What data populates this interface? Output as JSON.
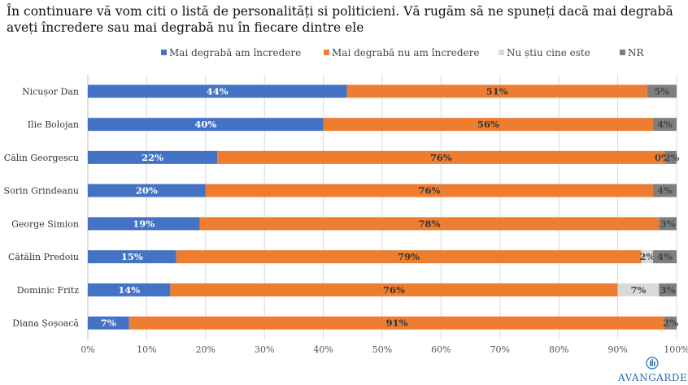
{
  "title": "În continuare vă vom citi o listă de personalități si politicieni. Vă rugăm să ne spuneți dacă mai degrabă aveți încredere sau mai degrabă nu în fiecare dintre ele",
  "logo": "AVANGARDE",
  "colors": {
    "trust": "#4472c4",
    "no_trust": "#ed7d31",
    "unknown": "#d9d9d9",
    "nr": "#7f7f7f"
  },
  "chart_data": {
    "type": "bar",
    "orientation": "horizontal",
    "stacked": true,
    "categories": [
      "Nicușor Dan",
      "Ilie Bolojan",
      "Călin Georgescu",
      "Sorin Grindeanu",
      "George Simion",
      "Cătălin Predoiu",
      "Dominic Fritz",
      "Diana Șoșoacă"
    ],
    "series": [
      {
        "name": "Mai degrabă am încredere",
        "values": [
          44,
          40,
          22,
          20,
          19,
          15,
          14,
          7
        ],
        "labels": [
          "44%",
          "40%",
          "22%",
          "20%",
          "19%",
          "15%",
          "14%",
          "7%"
        ]
      },
      {
        "name": "Mai degrabă nu am încredere",
        "values": [
          51,
          56,
          76,
          76,
          78,
          79,
          76,
          91
        ],
        "labels": [
          "51%",
          "56%",
          "76%",
          "76%",
          "78%",
          "79%",
          "76%",
          "91%"
        ]
      },
      {
        "name": "Nu știu cine este",
        "values": [
          0,
          0,
          0,
          0,
          0,
          2,
          7,
          0
        ],
        "labels": [
          "",
          "",
          "0%",
          "",
          "",
          "2%",
          "7%",
          ""
        ]
      },
      {
        "name": "NR",
        "values": [
          5,
          4,
          2,
          4,
          3,
          4,
          3,
          2
        ],
        "labels": [
          "5%",
          "4%",
          "2%",
          "4%",
          "3%",
          "4%",
          "3%",
          "2%"
        ]
      }
    ],
    "xlim": [
      0,
      100
    ],
    "xticks": [
      "0%",
      "10%",
      "20%",
      "30%",
      "40%",
      "50%",
      "60%",
      "70%",
      "80%",
      "90%",
      "100%"
    ],
    "grid": true,
    "legend_position": "top"
  }
}
